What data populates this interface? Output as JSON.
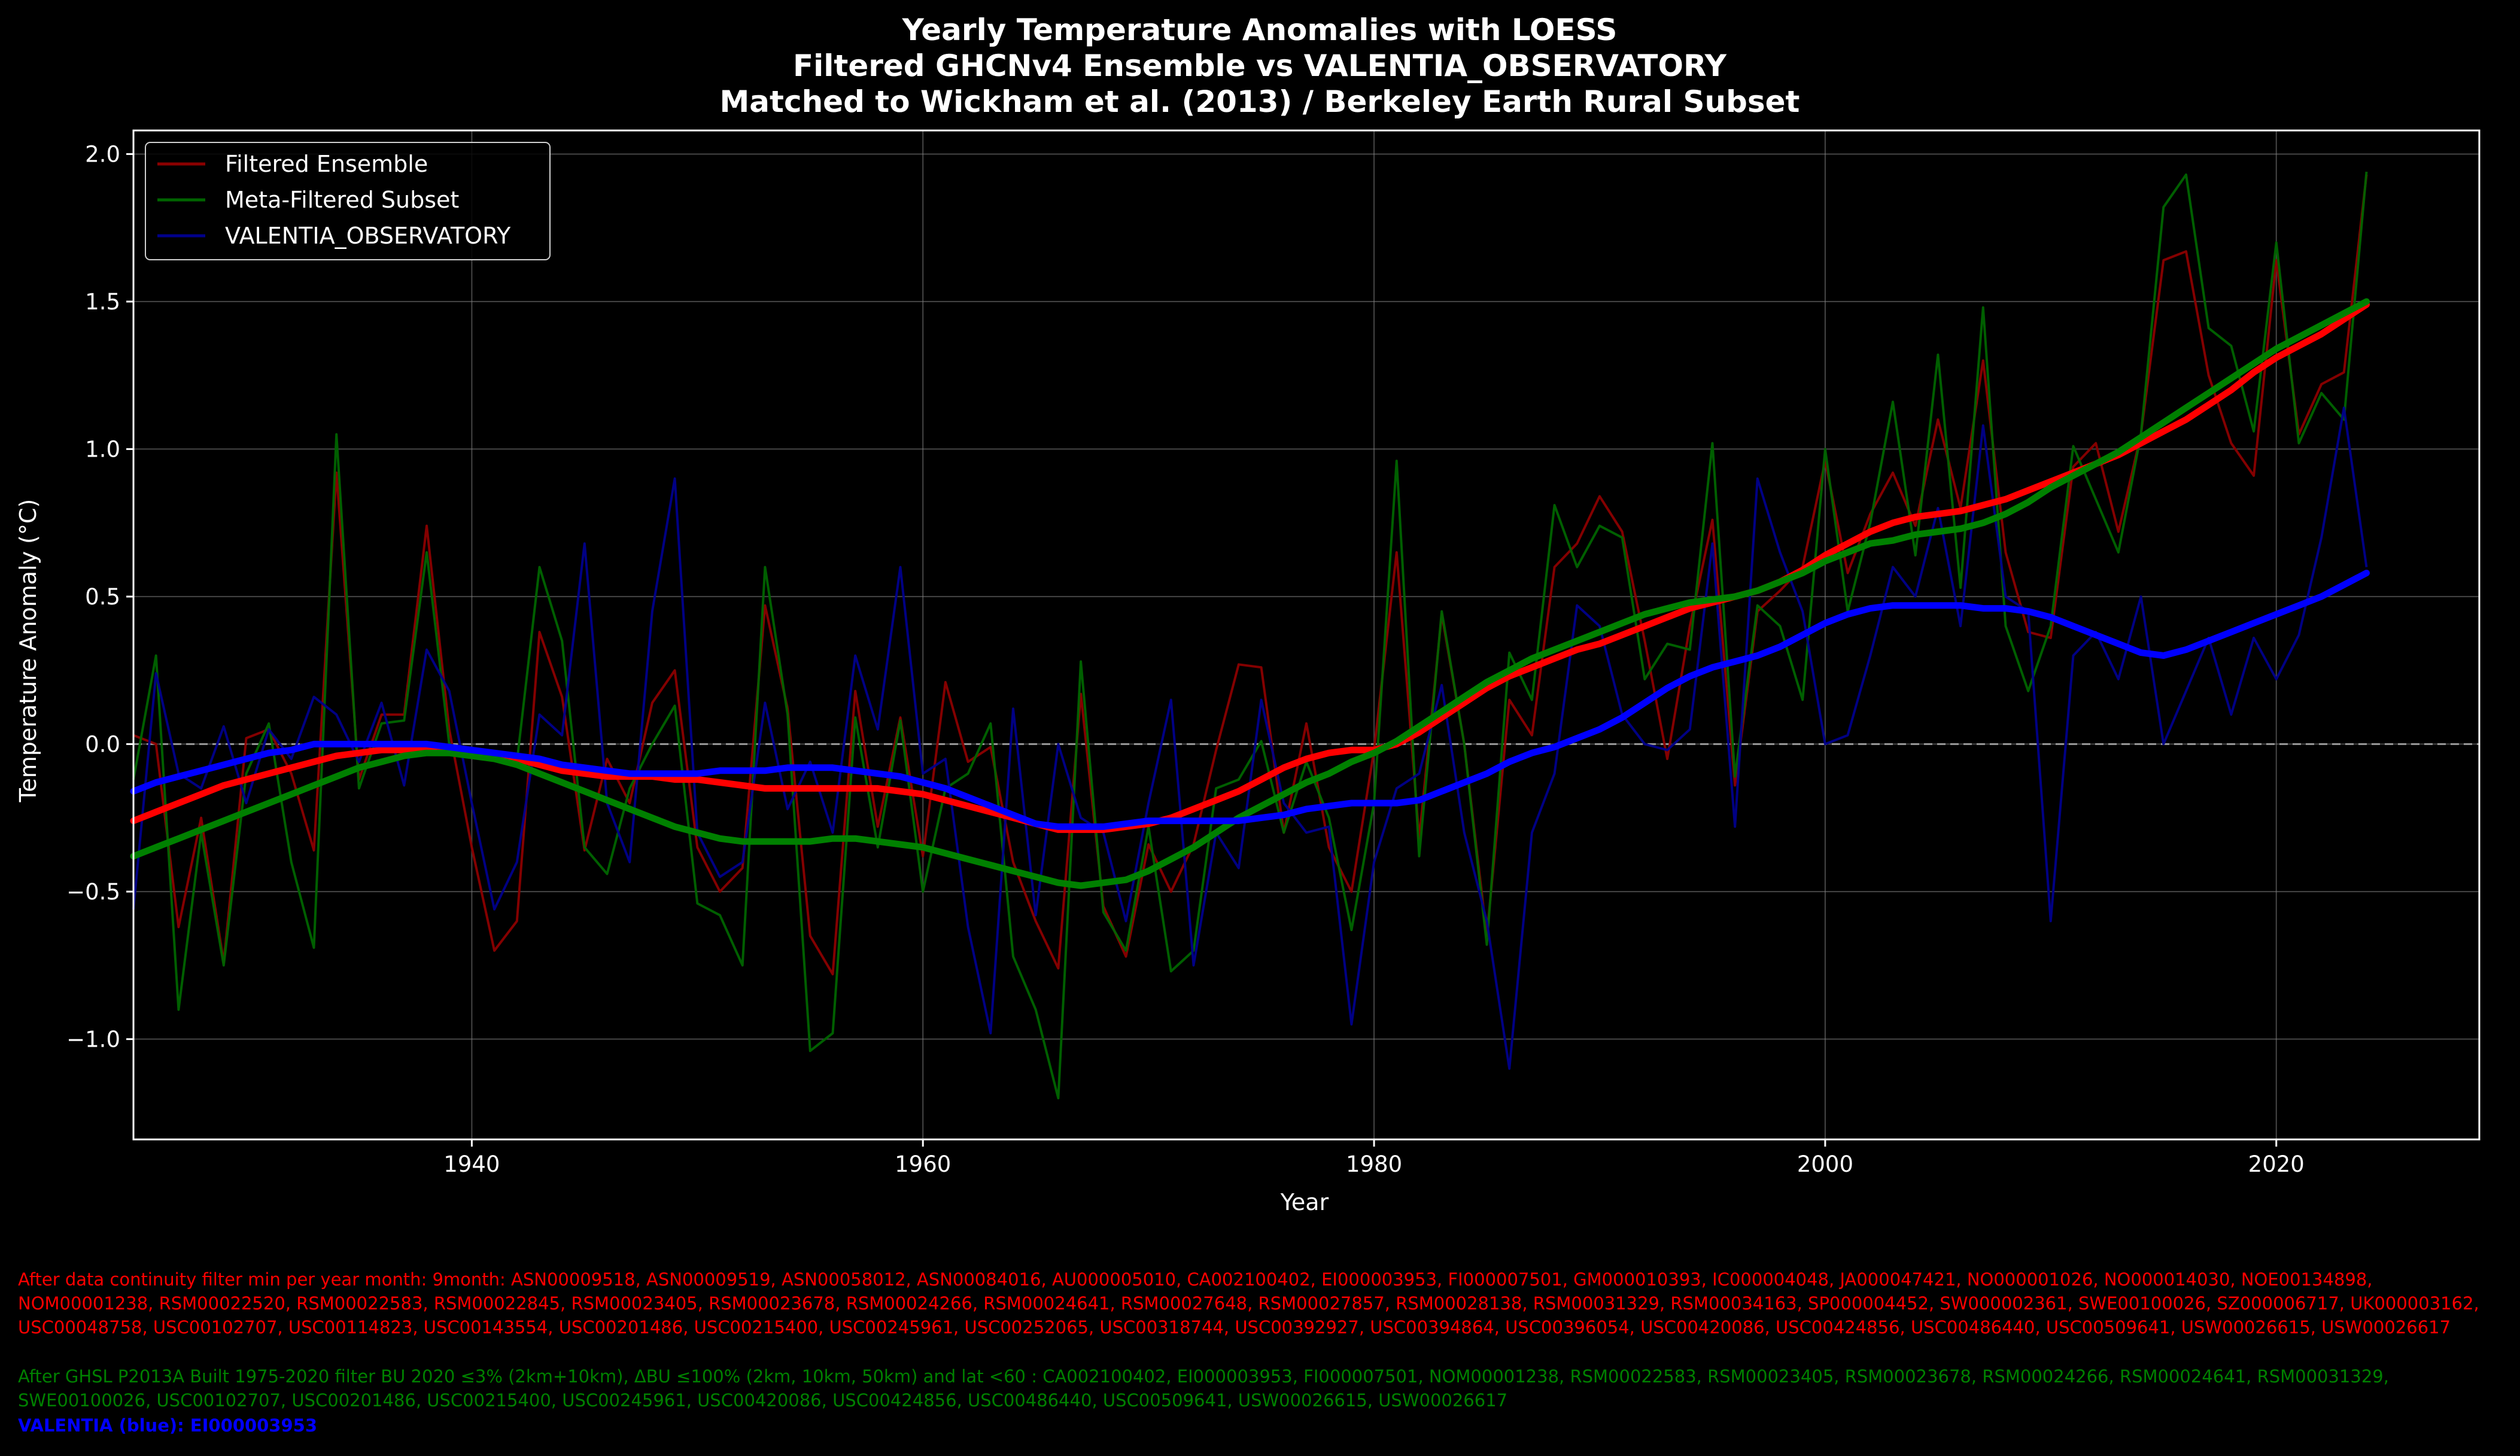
{
  "colors": {
    "background": "#000000",
    "ensemble": "#ff0000",
    "meta": "#008000",
    "valentia": "#0000ff",
    "ensemble_thin": "#8b0000",
    "meta_thin": "#006400",
    "valentia_thin": "#00008b",
    "grid": "#7f7f7f",
    "text": "#ffffff"
  },
  "notes": {
    "ensemble": "After data continuity filter min per year month: 9month: ASN00009518, ASN00009519, ASN00058012, ASN00084016, AU000005010, CA002100402, EI000003953, FI000007501, GM000010393, IC000004048, JA000047421, NO000001026, NO000014030, NOE00134898, NOM00001238, RSM00022520, RSM00022583, RSM00022845, RSM00023405, RSM00023678, RSM00024266, RSM00024641, RSM00027648, RSM00027857, RSM00028138, RSM00031329, RSM00034163, SP000004452, SW000002361, SWE00100026, SZ000006717, UK000003162, USC00048758, USC00102707, USC00114823, USC00143554, USC00201486, USC00215400, USC00245961, USC00252065, USC00318744, USC00392927, USC00394864, USC00396054, USC00420086, USC00424856, USC00486440, USC00509641, USW00026615, USW00026617",
    "meta": "After GHSL P2013A Built 1975-2020 filter BU 2020 ≤3% (2km+10km), ΔBU ≤100% (2km, 10km, 50km) and lat <60 : CA002100402, EI000003953, FI000007501, NOM00001238, RSM00022583, RSM00023405, RSM00023678, RSM00024266, RSM00024641, RSM00031329, SWE00100026, USC00102707, USC00201486, USC00215400, USC00245961, USC00420086, USC00424856, USC00486440, USC00509641, USW00026615, USW00026617",
    "valentia": "VALENTIA (blue): EI000003953"
  },
  "chart_data": {
    "type": "line",
    "title": [
      "Yearly Temperature Anomalies with LOESS",
      "Filtered GHCNv4 Ensemble vs VALENTIA_OBSERVATORY",
      "Matched to Wickham et al. (2013) / Berkeley Earth Rural Subset"
    ],
    "xlabel": "Year",
    "ylabel": "Temperature Anomaly (°C)",
    "xlim": [
      1925,
      2029
    ],
    "ylim": [
      -1.34,
      2.08
    ],
    "xticks": [
      1940,
      1960,
      1980,
      2000,
      2020
    ],
    "yticks": [
      -1.0,
      -0.5,
      0.0,
      0.5,
      1.0,
      1.5,
      2.0
    ],
    "ytick_labels": [
      "−1.0",
      "−0.5",
      "0.0",
      "0.5",
      "1.0",
      "1.5",
      "2.0"
    ],
    "grid": true,
    "zero_line": true,
    "legend_position": "upper-left",
    "legend": [
      "Filtered Ensemble",
      "Meta-Filtered Subset",
      "VALENTIA_OBSERVATORY"
    ],
    "years": [
      1925,
      1926,
      1927,
      1928,
      1929,
      1930,
      1931,
      1932,
      1933,
      1934,
      1935,
      1936,
      1937,
      1938,
      1939,
      1940,
      1941,
      1942,
      1943,
      1944,
      1945,
      1946,
      1947,
      1948,
      1949,
      1950,
      1951,
      1952,
      1953,
      1954,
      1955,
      1956,
      1957,
      1958,
      1959,
      1960,
      1961,
      1962,
      1963,
      1964,
      1965,
      1966,
      1967,
      1968,
      1969,
      1970,
      1971,
      1972,
      1973,
      1974,
      1975,
      1976,
      1977,
      1978,
      1979,
      1980,
      1981,
      1982,
      1983,
      1984,
      1985,
      1986,
      1987,
      1988,
      1989,
      1990,
      1991,
      1992,
      1993,
      1994,
      1995,
      1996,
      1997,
      1998,
      1999,
      2000,
      2001,
      2002,
      2003,
      2004,
      2005,
      2006,
      2007,
      2008,
      2009,
      2010,
      2011,
      2012,
      2013,
      2014,
      2015,
      2016,
      2017,
      2018,
      2019,
      2020,
      2021,
      2022,
      2023,
      2024
    ],
    "series": [
      {
        "name": "Filtered Ensemble",
        "annual": [
          0.03,
          0.0,
          -0.62,
          -0.25,
          -0.74,
          0.02,
          0.05,
          -0.1,
          -0.36,
          0.92,
          -0.12,
          0.1,
          0.1,
          0.74,
          0.05,
          -0.35,
          -0.7,
          -0.6,
          0.38,
          0.16,
          -0.36,
          -0.05,
          -0.2,
          0.14,
          0.25,
          -0.35,
          -0.5,
          -0.42,
          0.47,
          0.12,
          -0.65,
          -0.78,
          0.18,
          -0.28,
          0.09,
          -0.38,
          0.21,
          -0.06,
          -0.01,
          -0.4,
          -0.6,
          -0.76,
          0.17,
          -0.55,
          -0.72,
          -0.34,
          -0.5,
          -0.34,
          -0.02,
          0.27,
          0.26,
          -0.3,
          0.07,
          -0.35,
          -0.5,
          -0.02,
          0.65,
          -0.32,
          0.44,
          0.0,
          -0.65,
          0.15,
          0.03,
          0.6,
          0.68,
          0.84,
          0.72,
          0.35,
          -0.05,
          0.4,
          0.76,
          -0.14,
          0.45,
          0.52,
          0.6,
          0.96,
          0.58,
          0.78,
          0.92,
          0.74,
          1.1,
          0.8,
          1.3,
          0.65,
          0.38,
          0.36,
          0.94,
          1.02,
          0.72,
          1.05,
          1.64,
          1.67,
          1.25,
          1.02,
          0.91,
          1.64,
          1.05,
          1.22,
          1.26,
          1.93
        ],
        "loess": [
          -0.26,
          -0.23,
          -0.2,
          -0.17,
          -0.14,
          -0.12,
          -0.1,
          -0.08,
          -0.06,
          -0.04,
          -0.03,
          -0.02,
          -0.02,
          -0.02,
          -0.02,
          -0.03,
          -0.04,
          -0.05,
          -0.07,
          -0.09,
          -0.1,
          -0.11,
          -0.11,
          -0.11,
          -0.12,
          -0.12,
          -0.13,
          -0.14,
          -0.15,
          -0.15,
          -0.15,
          -0.15,
          -0.15,
          -0.15,
          -0.16,
          -0.17,
          -0.19,
          -0.21,
          -0.23,
          -0.25,
          -0.27,
          -0.29,
          -0.29,
          -0.29,
          -0.28,
          -0.27,
          -0.25,
          -0.22,
          -0.19,
          -0.16,
          -0.12,
          -0.08,
          -0.05,
          -0.03,
          -0.02,
          -0.02,
          0.0,
          0.04,
          0.09,
          0.14,
          0.19,
          0.23,
          0.26,
          0.29,
          0.32,
          0.34,
          0.37,
          0.4,
          0.43,
          0.46,
          0.48,
          0.5,
          0.52,
          0.55,
          0.59,
          0.64,
          0.68,
          0.72,
          0.75,
          0.77,
          0.78,
          0.79,
          0.81,
          0.83,
          0.86,
          0.89,
          0.92,
          0.95,
          0.98,
          1.02,
          1.06,
          1.1,
          1.15,
          1.2,
          1.26,
          1.31,
          1.35,
          1.39,
          1.44,
          1.49
        ]
      },
      {
        "name": "Meta-Filtered Subset",
        "annual": [
          -0.12,
          0.3,
          -0.9,
          -0.3,
          -0.75,
          -0.1,
          0.07,
          -0.4,
          -0.69,
          1.05,
          -0.15,
          0.07,
          0.08,
          0.65,
          0.0,
          -0.03,
          -0.05,
          -0.06,
          0.6,
          0.35,
          -0.35,
          -0.44,
          -0.15,
          0.0,
          0.13,
          -0.54,
          -0.58,
          -0.75,
          0.6,
          0.1,
          -1.04,
          -0.98,
          0.09,
          -0.35,
          0.08,
          -0.5,
          -0.15,
          -0.1,
          0.07,
          -0.72,
          -0.9,
          -1.2,
          0.28,
          -0.57,
          -0.7,
          -0.28,
          -0.77,
          -0.7,
          -0.15,
          -0.12,
          0.01,
          -0.3,
          -0.06,
          -0.25,
          -0.63,
          -0.2,
          0.96,
          -0.38,
          0.45,
          0.0,
          -0.68,
          0.31,
          0.15,
          0.81,
          0.6,
          0.74,
          0.7,
          0.22,
          0.34,
          0.32,
          1.02,
          -0.11,
          0.47,
          0.4,
          0.15,
          1.0,
          0.45,
          0.75,
          1.16,
          0.64,
          1.32,
          0.53,
          1.48,
          0.4,
          0.18,
          0.4,
          1.01,
          0.83,
          0.65,
          1.05,
          1.82,
          1.93,
          1.41,
          1.35,
          1.06,
          1.7,
          1.02,
          1.19,
          1.1,
          1.94
        ],
        "loess": [
          -0.38,
          -0.35,
          -0.32,
          -0.29,
          -0.26,
          -0.23,
          -0.2,
          -0.17,
          -0.14,
          -0.11,
          -0.08,
          -0.06,
          -0.04,
          -0.03,
          -0.03,
          -0.04,
          -0.05,
          -0.07,
          -0.1,
          -0.13,
          -0.16,
          -0.19,
          -0.22,
          -0.25,
          -0.28,
          -0.3,
          -0.32,
          -0.33,
          -0.33,
          -0.33,
          -0.33,
          -0.32,
          -0.32,
          -0.33,
          -0.34,
          -0.35,
          -0.37,
          -0.39,
          -0.41,
          -0.43,
          -0.45,
          -0.47,
          -0.48,
          -0.47,
          -0.46,
          -0.43,
          -0.39,
          -0.35,
          -0.3,
          -0.25,
          -0.21,
          -0.17,
          -0.13,
          -0.1,
          -0.06,
          -0.03,
          0.01,
          0.06,
          0.11,
          0.16,
          0.21,
          0.25,
          0.29,
          0.32,
          0.35,
          0.38,
          0.41,
          0.44,
          0.46,
          0.48,
          0.49,
          0.5,
          0.52,
          0.55,
          0.58,
          0.62,
          0.65,
          0.68,
          0.69,
          0.71,
          0.72,
          0.73,
          0.75,
          0.78,
          0.82,
          0.87,
          0.91,
          0.95,
          0.99,
          1.04,
          1.09,
          1.14,
          1.19,
          1.24,
          1.29,
          1.34,
          1.38,
          1.42,
          1.46,
          1.5
        ]
      },
      {
        "name": "VALENTIA_OBSERVATORY",
        "annual": [
          -0.56,
          0.24,
          -0.1,
          -0.15,
          0.06,
          -0.2,
          0.05,
          -0.05,
          0.16,
          0.1,
          -0.06,
          0.14,
          -0.14,
          0.32,
          0.18,
          -0.2,
          -0.56,
          -0.4,
          0.1,
          0.03,
          0.68,
          -0.2,
          -0.4,
          0.45,
          0.9,
          -0.3,
          -0.45,
          -0.4,
          0.14,
          -0.22,
          -0.06,
          -0.3,
          0.3,
          0.05,
          0.6,
          -0.1,
          -0.05,
          -0.62,
          -0.98,
          0.12,
          -0.58,
          0.0,
          -0.25,
          -0.3,
          -0.6,
          -0.2,
          0.15,
          -0.75,
          -0.3,
          -0.42,
          0.15,
          -0.2,
          -0.3,
          -0.28,
          -0.95,
          -0.4,
          -0.15,
          -0.1,
          0.2,
          -0.3,
          -0.6,
          -1.1,
          -0.3,
          -0.1,
          0.47,
          0.4,
          0.1,
          0.0,
          -0.02,
          0.05,
          0.68,
          -0.28,
          0.9,
          0.65,
          0.45,
          0.0,
          0.03,
          0.3,
          0.6,
          0.5,
          0.8,
          0.4,
          1.08,
          0.5,
          0.45,
          -0.6,
          0.3,
          0.38,
          0.22,
          0.5,
          0.0,
          0.18,
          0.36,
          0.1,
          0.36,
          0.22,
          0.37,
          0.7,
          1.14,
          0.6
        ],
        "loess": [
          -0.16,
          -0.13,
          -0.11,
          -0.09,
          -0.07,
          -0.05,
          -0.03,
          -0.02,
          0.0,
          0.0,
          0.0,
          0.0,
          0.0,
          0.0,
          -0.01,
          -0.02,
          -0.03,
          -0.04,
          -0.05,
          -0.07,
          -0.08,
          -0.09,
          -0.1,
          -0.1,
          -0.1,
          -0.1,
          -0.09,
          -0.09,
          -0.09,
          -0.08,
          -0.08,
          -0.08,
          -0.09,
          -0.1,
          -0.11,
          -0.13,
          -0.15,
          -0.18,
          -0.21,
          -0.24,
          -0.27,
          -0.28,
          -0.28,
          -0.28,
          -0.27,
          -0.26,
          -0.26,
          -0.26,
          -0.26,
          -0.26,
          -0.25,
          -0.24,
          -0.22,
          -0.21,
          -0.2,
          -0.2,
          -0.2,
          -0.19,
          -0.16,
          -0.13,
          -0.1,
          -0.06,
          -0.03,
          -0.01,
          0.02,
          0.05,
          0.09,
          0.14,
          0.19,
          0.23,
          0.26,
          0.28,
          0.3,
          0.33,
          0.37,
          0.41,
          0.44,
          0.46,
          0.47,
          0.47,
          0.47,
          0.47,
          0.46,
          0.46,
          0.45,
          0.43,
          0.4,
          0.37,
          0.34,
          0.31,
          0.3,
          0.32,
          0.35,
          0.38,
          0.41,
          0.44,
          0.47,
          0.5,
          0.54,
          0.58
        ]
      }
    ]
  }
}
